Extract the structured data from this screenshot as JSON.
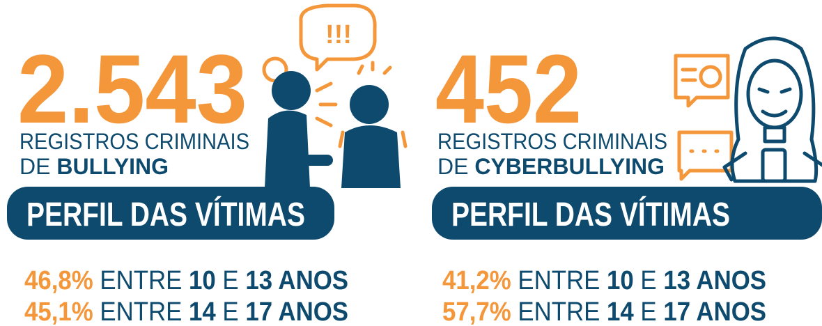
{
  "panels": [
    {
      "number": "2.543",
      "line1": "REGISTROS CRIMINAIS",
      "line2_prefix": "DE",
      "line2_bold": "BULLYING",
      "bubble": "!!!",
      "banner": "PERFIL DAS VÍTIMAS",
      "stats": [
        {
          "percent": "46,8%",
          "between": "ENTRE",
          "from": "10",
          "and": "E",
          "to": "13 ANOS"
        },
        {
          "percent": "45,1%",
          "between": "ENTRE",
          "from": "14",
          "and": "E",
          "to": "17 ANOS"
        }
      ]
    },
    {
      "number": "452",
      "line1": "REGISTROS CRIMINAIS",
      "line2_prefix": "DE",
      "line2_bold": "CYBERBULLYING",
      "banner": "PERFIL DAS VÍTIMAS",
      "stats": [
        {
          "percent": "41,2%",
          "between": "ENTRE",
          "from": "10",
          "and": "E",
          "to": "13 ANOS"
        },
        {
          "percent": "57,7%",
          "between": "ENTRE",
          "from": "14",
          "and": "E",
          "to": "17 ANOS"
        }
      ]
    }
  ]
}
